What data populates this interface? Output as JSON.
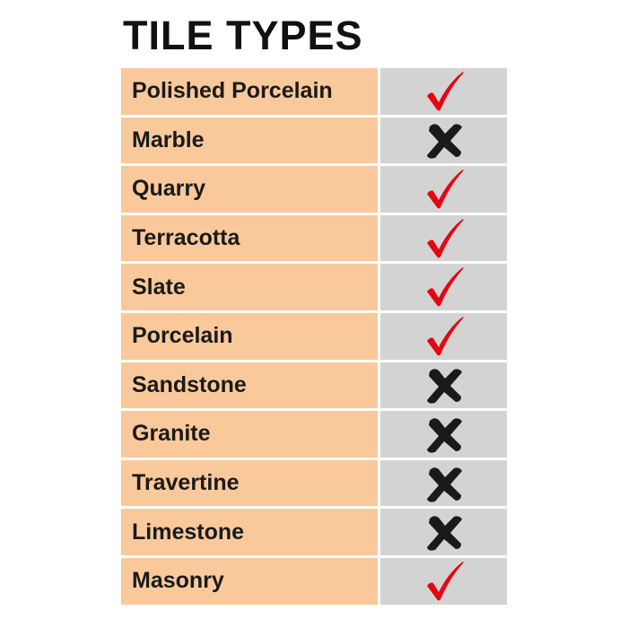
{
  "title": "TILE TYPES",
  "colors": {
    "name_bg": "#f9c99b",
    "mark_bg": "#d3d3d3",
    "check": "#e30613",
    "cross": "#1a1a1a"
  },
  "rows": [
    {
      "name": "Polished Porcelain",
      "suitable": true
    },
    {
      "name": "Marble",
      "suitable": false
    },
    {
      "name": "Quarry",
      "suitable": true
    },
    {
      "name": "Terracotta",
      "suitable": true
    },
    {
      "name": "Slate",
      "suitable": true
    },
    {
      "name": "Porcelain",
      "suitable": true
    },
    {
      "name": "Sandstone",
      "suitable": false
    },
    {
      "name": "Granite",
      "suitable": false
    },
    {
      "name": "Travertine",
      "suitable": false
    },
    {
      "name": "Limestone",
      "suitable": false
    },
    {
      "name": "Masonry",
      "suitable": true
    }
  ]
}
